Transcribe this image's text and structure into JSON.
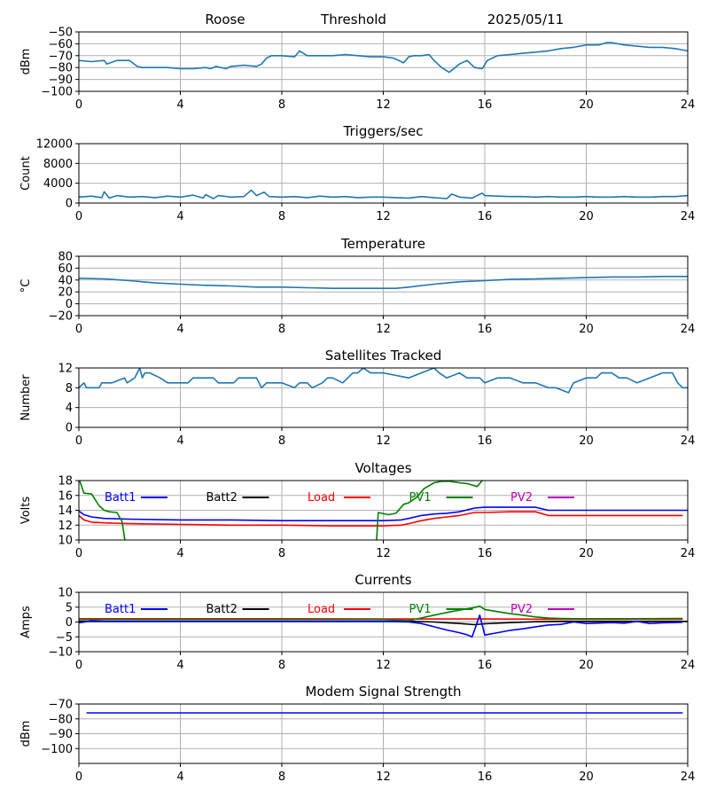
{
  "header": {
    "station": "Roose",
    "mode": "Threshold",
    "date": "2025/05/11"
  },
  "colors": {
    "primary": "#1f77b4",
    "batt1": "#0000ff",
    "batt2": "#000000",
    "load": "#ff0000",
    "pv1": "#008000",
    "pv2": "#c000c0",
    "grid": "#b0b0b0"
  },
  "chart_data": [
    {
      "id": "signal",
      "type": "line",
      "title": "",
      "ylabel": "dBm",
      "xlim": [
        0,
        24
      ],
      "xticks": [
        0,
        4,
        8,
        12,
        16,
        20,
        24
      ],
      "ylim": [
        -100,
        -50
      ],
      "yticks": [
        -100,
        -90,
        -80,
        -70,
        -60,
        -50
      ],
      "ytick_labels": [
        "−100",
        "−90",
        "−80",
        "−70",
        "−60",
        "−50"
      ],
      "grid": true,
      "series": [
        {
          "color_key": "primary",
          "x": [
            0,
            0.5,
            1,
            1.1,
            1.5,
            2,
            2.3,
            2.5,
            3,
            3.5,
            4,
            4.5,
            5,
            5.2,
            5.4,
            5.8,
            6,
            6.5,
            7,
            7.2,
            7.4,
            7.6,
            8,
            8.5,
            8.7,
            9,
            9.5,
            10,
            10.5,
            11,
            11.5,
            12,
            12.4,
            12.8,
            13,
            13.2,
            13.5,
            13.8,
            14,
            14.3,
            14.6,
            15,
            15.3,
            15.6,
            15.9,
            16.1,
            16.5,
            17,
            17.5,
            18,
            18.5,
            19,
            19.5,
            20,
            20.5,
            20.8,
            21,
            21.5,
            22,
            22.5,
            23,
            23.5,
            24
          ],
          "y": [
            -74,
            -75,
            -74,
            -77,
            -74,
            -74,
            -79,
            -80,
            -80,
            -80,
            -81,
            -81,
            -80,
            -81,
            -79,
            -81,
            -79,
            -78,
            -79,
            -77,
            -72,
            -70,
            -70,
            -71,
            -66,
            -70,
            -70,
            -70,
            -69,
            -70,
            -71,
            -71,
            -72,
            -76,
            -71,
            -70,
            -70,
            -69,
            -74,
            -80,
            -84,
            -77,
            -74,
            -80,
            -81,
            -74,
            -70,
            -69,
            -68,
            -67,
            -66,
            -64,
            -63,
            -61,
            -61,
            -59,
            -59,
            -61,
            -62,
            -63,
            -63,
            -64,
            -66
          ]
        }
      ]
    },
    {
      "id": "triggers",
      "type": "line",
      "title": "Triggers/sec",
      "ylabel": "Count",
      "xlim": [
        0,
        24
      ],
      "xticks": [
        0,
        4,
        8,
        12,
        16,
        20,
        24
      ],
      "ylim": [
        0,
        12000
      ],
      "yticks": [
        0,
        4000,
        8000,
        12000
      ],
      "ytick_labels": [
        "0",
        "4000",
        "8000",
        "12000"
      ],
      "grid": true,
      "series": [
        {
          "color_key": "primary",
          "x": [
            0,
            0.5,
            0.9,
            1,
            1.2,
            1.5,
            2,
            2.5,
            3,
            3.5,
            4,
            4.5,
            4.9,
            5,
            5.3,
            5.5,
            6,
            6.5,
            6.8,
            7,
            7.3,
            7.5,
            8,
            8.5,
            9,
            9.5,
            10,
            10.5,
            11,
            11.5,
            12,
            12.5,
            13,
            13.5,
            14,
            14.5,
            14.7,
            15,
            15.5,
            15.9,
            16,
            16.5,
            17,
            17.5,
            18,
            18.5,
            19,
            19.5,
            20,
            20.5,
            21,
            21.5,
            22,
            22.5,
            23,
            23.5,
            24
          ],
          "y": [
            1200,
            1400,
            1100,
            2300,
            1000,
            1500,
            1200,
            1300,
            1100,
            1400,
            1200,
            1600,
            1000,
            1700,
            900,
            1500,
            1200,
            1300,
            2600,
            1500,
            2200,
            1300,
            1200,
            1300,
            1100,
            1400,
            1200,
            1300,
            1100,
            1200,
            1200,
            1100,
            1000,
            1300,
            1100,
            900,
            1800,
            1200,
            1000,
            2000,
            1500,
            1400,
            1300,
            1300,
            1200,
            1300,
            1200,
            1200,
            1300,
            1200,
            1200,
            1300,
            1200,
            1200,
            1300,
            1300,
            1500
          ]
        }
      ]
    },
    {
      "id": "temperature",
      "type": "line",
      "title": "Temperature",
      "ylabel": "°C",
      "xlim": [
        0,
        24
      ],
      "xticks": [
        0,
        4,
        8,
        12,
        16,
        20,
        24
      ],
      "ylim": [
        -20,
        80
      ],
      "yticks": [
        -20,
        0,
        20,
        40,
        60,
        80
      ],
      "ytick_labels": [
        "−20",
        "0",
        "20",
        "40",
        "60",
        "80"
      ],
      "grid": true,
      "series": [
        {
          "color_key": "primary",
          "x": [
            0,
            1,
            2,
            3,
            4,
            5,
            6,
            7,
            8,
            9,
            10,
            11,
            12,
            12.5,
            13,
            14,
            15,
            16,
            17,
            18,
            19,
            20,
            21,
            22,
            23,
            24
          ],
          "y": [
            43,
            42,
            39,
            35,
            33,
            31,
            30,
            28,
            28,
            27,
            26,
            26,
            26,
            26,
            28,
            33,
            37,
            39,
            41,
            42,
            43,
            44,
            45,
            45,
            46,
            46
          ]
        }
      ]
    },
    {
      "id": "satellites",
      "type": "line",
      "title": "Satellites Tracked",
      "ylabel": "Number",
      "xlim": [
        0,
        24
      ],
      "xticks": [
        0,
        4,
        8,
        12,
        16,
        20,
        24
      ],
      "ylim": [
        0,
        12
      ],
      "yticks": [
        0,
        4,
        8,
        12
      ],
      "ytick_labels": [
        "0",
        "4",
        "8",
        "12"
      ],
      "grid": true,
      "series": [
        {
          "color_key": "primary",
          "x": [
            0,
            0.2,
            0.3,
            0.8,
            0.9,
            1.3,
            1.8,
            1.9,
            2.2,
            2.3,
            2.4,
            2.5,
            2.6,
            2.8,
            3.2,
            3.5,
            4.3,
            4.5,
            5.3,
            5.5,
            6.1,
            6.3,
            7,
            7.2,
            7.4,
            8,
            8.5,
            8.7,
            9,
            9.2,
            9.6,
            9.8,
            10,
            10.4,
            10.6,
            10.8,
            11,
            11.2,
            11.5,
            12,
            13,
            13.5,
            14,
            14.2,
            14.5,
            15,
            15.3,
            15.8,
            16,
            16.5,
            17,
            17.5,
            18,
            18.5,
            18.8,
            19.3,
            19.5,
            20,
            20.4,
            20.6,
            21,
            21.3,
            21.6,
            22,
            22.5,
            23,
            23.4,
            23.5,
            23.6,
            23.8,
            24
          ],
          "y": [
            8,
            9,
            8,
            8,
            9,
            9,
            10,
            9,
            10,
            11,
            12,
            10,
            11,
            11,
            10,
            9,
            9,
            10,
            10,
            9,
            9,
            10,
            10,
            8,
            9,
            9,
            8,
            9,
            9,
            8,
            9,
            10,
            10,
            9,
            10,
            11,
            11,
            12,
            11,
            11,
            10,
            11,
            12,
            11,
            10,
            11,
            10,
            10,
            9,
            10,
            10,
            9,
            9,
            8,
            8,
            7,
            9,
            10,
            10,
            11,
            11,
            10,
            10,
            9,
            10,
            11,
            11,
            10,
            9,
            8,
            8
          ]
        }
      ]
    },
    {
      "id": "voltages",
      "type": "line",
      "title": "Voltages",
      "ylabel": "Volts",
      "xlim": [
        0,
        24
      ],
      "xticks": [
        0,
        4,
        8,
        12,
        16,
        20,
        24
      ],
      "ylim": [
        10,
        18
      ],
      "yticks": [
        10,
        12,
        14,
        16,
        18
      ],
      "ytick_labels": [
        "10",
        "12",
        "14",
        "16",
        "18"
      ],
      "grid": true,
      "legend": {
        "placement": "upper-inside",
        "entries": [
          "Batt1",
          "Batt2",
          "Load",
          "PV1",
          "PV2"
        ]
      },
      "series": [
        {
          "name": "Batt1",
          "color_key": "batt1",
          "x": [
            0,
            0.2,
            0.5,
            1,
            2,
            4,
            6,
            8,
            10,
            12,
            12.7,
            13,
            13.5,
            14,
            14.5,
            15,
            15.6,
            16,
            17,
            18,
            18.5,
            20,
            22,
            24
          ],
          "y": [
            13.9,
            13.4,
            13.1,
            12.9,
            12.8,
            12.7,
            12.7,
            12.6,
            12.6,
            12.6,
            12.7,
            12.9,
            13.3,
            13.5,
            13.6,
            13.8,
            14.3,
            14.4,
            14.4,
            14.4,
            14.0,
            14.0,
            14.0,
            14.0
          ]
        },
        {
          "name": "Load",
          "color_key": "load",
          "x": [
            0,
            0.2,
            0.5,
            1,
            2,
            4,
            6,
            8,
            10,
            12,
            12.7,
            13,
            13.5,
            14,
            14.5,
            15,
            15.6,
            16,
            17,
            18,
            18.5,
            20,
            22,
            23.8
          ],
          "y": [
            13.3,
            12.7,
            12.4,
            12.3,
            12.2,
            12.1,
            12.0,
            12.0,
            11.9,
            11.9,
            12.0,
            12.2,
            12.6,
            12.9,
            13.1,
            13.3,
            13.7,
            13.7,
            13.8,
            13.8,
            13.3,
            13.3,
            13.3,
            13.3
          ]
        },
        {
          "name": "PV1",
          "color_key": "pv1",
          "x": [
            0,
            0.2,
            0.5,
            0.8,
            1,
            1.2,
            1.5,
            1.7,
            1.8,
            1.9,
            11.7,
            11.8,
            12.2,
            12.5,
            12.8,
            13,
            13.3,
            13.6,
            14,
            14.3,
            14.6,
            15,
            15.3,
            15.7,
            15.9
          ],
          "y": [
            18.3,
            16.3,
            16.2,
            14.6,
            14.0,
            13.8,
            13.7,
            12.5,
            10.3,
            8.0,
            8.0,
            13.7,
            13.4,
            13.6,
            14.8,
            15.0,
            15.7,
            16.9,
            17.7,
            17.9,
            17.9,
            17.7,
            17.6,
            17.2,
            18.0
          ]
        }
      ]
    },
    {
      "id": "currents",
      "type": "line",
      "title": "Currents",
      "ylabel": "Amps",
      "xlim": [
        0,
        24
      ],
      "xticks": [
        0,
        4,
        8,
        12,
        16,
        20,
        24
      ],
      "ylim": [
        -10,
        10
      ],
      "yticks": [
        -10,
        -5,
        0,
        5,
        10
      ],
      "ytick_labels": [
        "−10",
        "−5",
        "0",
        "5",
        "10"
      ],
      "grid": true,
      "legend": {
        "placement": "upper-inside",
        "entries": [
          "Batt1",
          "Batt2",
          "Load",
          "PV1",
          "PV2"
        ]
      },
      "series": [
        {
          "name": "Load",
          "color_key": "load",
          "x": [
            0,
            4,
            8,
            12,
            16,
            20,
            23.8
          ],
          "y": [
            1.1,
            1.1,
            1.1,
            1.0,
            1.0,
            0.9,
            0.9
          ]
        },
        {
          "name": "Batt2",
          "color_key": "batt2",
          "x": [
            0,
            12,
            13,
            14,
            15,
            15.6,
            16,
            17,
            18,
            19,
            20,
            24
          ],
          "y": [
            0.2,
            0.2,
            0.3,
            0.0,
            -0.5,
            -0.9,
            -0.6,
            -0.2,
            0.1,
            0.2,
            0.2,
            0.2
          ]
        },
        {
          "name": "PV1",
          "color_key": "pv1",
          "x": [
            0,
            12,
            13,
            13.3,
            14,
            14.5,
            15,
            15.5,
            15.8,
            16,
            16.5,
            17,
            17.5,
            18,
            18.5,
            19,
            19.5,
            20,
            22,
            23.8
          ],
          "y": [
            0.8,
            0.8,
            0.5,
            1.0,
            2.3,
            3.2,
            4.0,
            4.7,
            5.3,
            4.2,
            3.5,
            2.8,
            2.3,
            1.7,
            1.3,
            1.2,
            1.1,
            1.1,
            1.1,
            1.2
          ]
        },
        {
          "name": "Batt1",
          "color_key": "batt1",
          "x": [
            0,
            0.5,
            1,
            4,
            8,
            12,
            13,
            13.5,
            14,
            14.5,
            15,
            15.3,
            15.5,
            15.8,
            16,
            16.5,
            17,
            17.5,
            18,
            18.5,
            19,
            19.5,
            20,
            21,
            21.5,
            22,
            22.5,
            23,
            23.8
          ],
          "y": [
            -0.3,
            0.4,
            0.2,
            0.2,
            0.2,
            0.2,
            0.0,
            -0.5,
            -1.6,
            -2.7,
            -3.6,
            -4.3,
            -5.0,
            2.3,
            -4.4,
            -3.6,
            -2.8,
            -2.3,
            -1.6,
            -1.0,
            -0.8,
            0.0,
            -0.5,
            -0.2,
            -0.4,
            0.2,
            -0.5,
            -0.3,
            -0.1
          ]
        }
      ]
    },
    {
      "id": "modem",
      "type": "line",
      "title": "Modem Signal Strength",
      "ylabel": "dBm",
      "xlim": [
        0,
        24
      ],
      "xticks": [
        0,
        4,
        8,
        12,
        16,
        20,
        24
      ],
      "ylim": [
        -110,
        -70
      ],
      "yticks": [
        -100,
        -90,
        -80,
        -70
      ],
      "ytick_labels": [
        "−100",
        "−90",
        "−80",
        "−70"
      ],
      "grid": true,
      "series": [
        {
          "color_key": "batt1",
          "x": [
            0.3,
            23.8
          ],
          "y": [
            -76,
            -76
          ]
        }
      ]
    }
  ]
}
